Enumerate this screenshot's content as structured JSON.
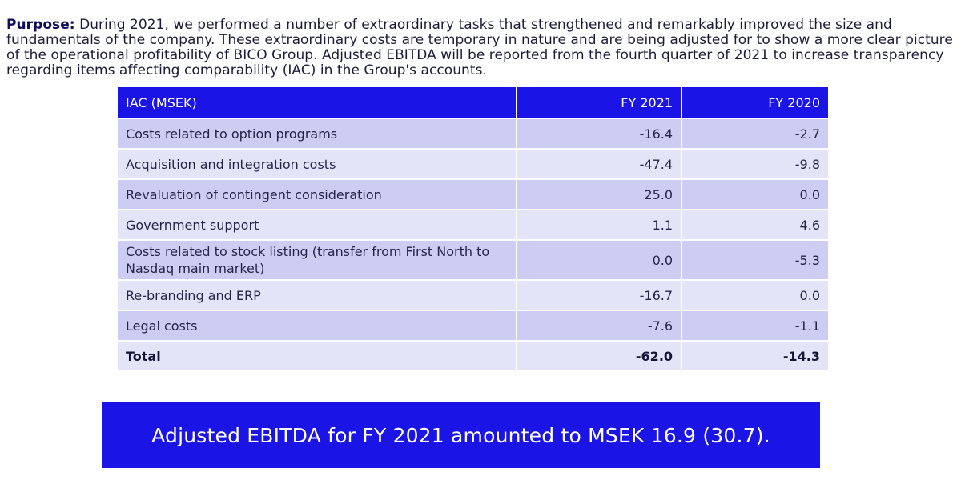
{
  "purpose": {
    "lead": "Purpose:",
    "text": " During 2021, we performed a number of extraordinary tasks that strengthened and remarkably improved the size and fundamentals of the company. These extraordinary costs are temporary in nature and are being adjusted for to show a more clear picture of the operational profitability of BICO Group. Adjusted EBITDA will be reported from the fourth quarter of 2021 to increase transparency regarding items affecting comparability (IAC) in the Group's accounts."
  },
  "table": {
    "headers": {
      "label": "IAC (MSEK)",
      "fy2021": "FY 2021",
      "fy2020": "FY 2020"
    },
    "rows": [
      {
        "label": "Costs related to option programs",
        "fy2021": "-16.4",
        "fy2020": "-2.7"
      },
      {
        "label": "Acquisition and integration costs",
        "fy2021": "-47.4",
        "fy2020": "-9.8"
      },
      {
        "label": "Revaluation of contingent consideration",
        "fy2021": "25.0",
        "fy2020": "0.0"
      },
      {
        "label": "Government support",
        "fy2021": "1.1",
        "fy2020": "4.6"
      },
      {
        "label": "Costs related to stock listing (transfer from First North to Nasdaq main market)",
        "fy2021": "0.0",
        "fy2020": "-5.3"
      },
      {
        "label": "Re-branding and ERP",
        "fy2021": "-16.7",
        "fy2020": "0.0"
      },
      {
        "label": "Legal costs",
        "fy2021": "-7.6",
        "fy2020": "-1.1"
      }
    ],
    "total": {
      "label": "Total",
      "fy2021": "-62.0",
      "fy2020": "-14.3"
    }
  },
  "callout": {
    "text": "Adjusted EBITDA for FY 2021 amounted to MSEK 16.9 (30.7)."
  },
  "colors": {
    "accent_blue": "#1b14e6",
    "row_dark": "#cdcdf4",
    "row_light": "#e4e4f9"
  }
}
